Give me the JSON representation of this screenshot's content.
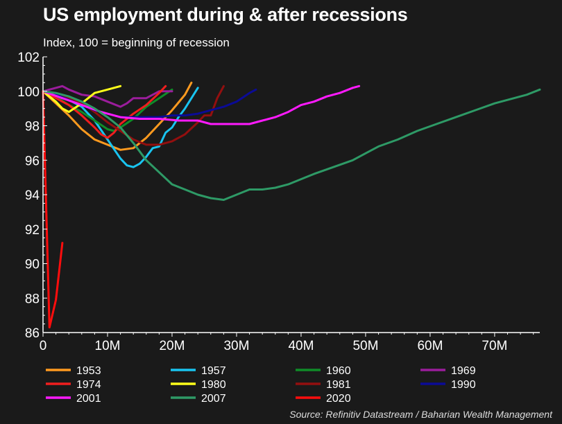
{
  "chart_data": {
    "type": "line",
    "title": "US employment during & after recessions",
    "subtitle": "Index, 100 = beginning of recession",
    "source": "Source: Refinitiv Datastream / Baharian Wealth Management",
    "xlabel": "",
    "ylabel": "",
    "xlim": [
      0,
      77
    ],
    "ylim": [
      86,
      102
    ],
    "x_ticks": [
      0,
      10,
      20,
      30,
      40,
      50,
      60,
      70
    ],
    "x_tick_labels": [
      "0",
      "10M",
      "20M",
      "30M",
      "40M",
      "50M",
      "60M",
      "70M"
    ],
    "y_ticks": [
      86,
      88,
      90,
      92,
      94,
      96,
      98,
      100,
      102
    ],
    "y_tick_labels": [
      "86",
      "88",
      "90",
      "92",
      "94",
      "96",
      "98",
      "100",
      "102"
    ],
    "grid": false,
    "legend_position": "bottom",
    "series": [
      {
        "name": "1953",
        "color": "#ff9a1f",
        "x": [
          0,
          2,
          4,
          6,
          8,
          10,
          12,
          14,
          16,
          18,
          20,
          22,
          23
        ],
        "y": [
          100,
          99.3,
          98.6,
          97.8,
          97.2,
          96.9,
          96.6,
          96.7,
          97.3,
          98.1,
          98.9,
          99.8,
          100.5
        ]
      },
      {
        "name": "1957",
        "color": "#19c4f0",
        "x": [
          0,
          2,
          4,
          6,
          8,
          10,
          12,
          13,
          14,
          15,
          16,
          17,
          18,
          19,
          20,
          21,
          22,
          23,
          24
        ],
        "y": [
          100,
          99.8,
          99.5,
          99.1,
          98.3,
          97.2,
          96.1,
          95.7,
          95.6,
          95.8,
          96.2,
          96.7,
          96.8,
          97.6,
          97.9,
          98.5,
          99,
          99.6,
          100.2
        ]
      },
      {
        "name": "1960",
        "color": "#0f8c28",
        "x": [
          0,
          2,
          4,
          6,
          8,
          10,
          11,
          12,
          14,
          16,
          18,
          20
        ],
        "y": [
          100,
          99.7,
          99.2,
          98.8,
          98.3,
          97.8,
          97.7,
          97.9,
          98.4,
          99.1,
          99.6,
          100.1
        ]
      },
      {
        "name": "1969",
        "color": "#9b1d9c",
        "x": [
          0,
          2,
          3,
          4,
          6,
          8,
          10,
          12,
          13,
          14,
          16,
          18,
          20
        ],
        "y": [
          100,
          100.2,
          100.3,
          100.1,
          99.8,
          99.7,
          99.4,
          99.1,
          99.3,
          99.6,
          99.6,
          100,
          100
        ]
      },
      {
        "name": "1974",
        "color": "#f01e1e",
        "x": [
          0,
          2,
          4,
          6,
          8,
          9,
          10,
          11,
          12,
          14,
          16,
          18,
          19
        ],
        "y": [
          100,
          99.6,
          99.2,
          98.6,
          97.9,
          97.5,
          97.3,
          97.6,
          98.1,
          98.7,
          99.2,
          99.9,
          100.3
        ]
      },
      {
        "name": "1980",
        "color": "#ffff1a",
        "x": [
          0,
          2,
          3,
          4,
          6,
          8,
          10,
          12
        ],
        "y": [
          100,
          99.4,
          99,
          98.8,
          99.3,
          99.9,
          100.1,
          100.3
        ]
      },
      {
        "name": "1981",
        "color": "#930f0f",
        "x": [
          0,
          2,
          4,
          6,
          8,
          10,
          12,
          14,
          16,
          18,
          20,
          22,
          24,
          25,
          26,
          27,
          28
        ],
        "y": [
          100,
          99.8,
          99.6,
          99.3,
          98.8,
          98.2,
          97.7,
          97.2,
          96.9,
          96.9,
          97.1,
          97.5,
          98.2,
          98.6,
          98.6,
          99.6,
          100.3
        ]
      },
      {
        "name": "1990",
        "color": "#0b0b96",
        "x": [
          0,
          2,
          4,
          6,
          8,
          10,
          12,
          14,
          16,
          18,
          20,
          22,
          24,
          26,
          28,
          30,
          32,
          33
        ],
        "y": [
          100,
          99.8,
          99.5,
          99.2,
          98.9,
          98.7,
          98.5,
          98.5,
          98.5,
          98.5,
          98.6,
          98.6,
          98.7,
          98.9,
          99.1,
          99.4,
          99.9,
          100.1
        ]
      },
      {
        "name": "2001",
        "color": "#ff1aff",
        "x": [
          0,
          3,
          6,
          9,
          12,
          15,
          18,
          21,
          24,
          26,
          28,
          30,
          32,
          34,
          36,
          38,
          40,
          42,
          44,
          46,
          48,
          49
        ],
        "y": [
          100,
          99.6,
          99.2,
          98.8,
          98.5,
          98.4,
          98.4,
          98.3,
          98.3,
          98.1,
          98.1,
          98.1,
          98.1,
          98.3,
          98.5,
          98.8,
          99.2,
          99.4,
          99.7,
          99.9,
          100.2,
          100.3
        ]
      },
      {
        "name": "2007",
        "color": "#2e9a66",
        "x": [
          0,
          2,
          4,
          6,
          8,
          10,
          12,
          14,
          16,
          18,
          20,
          22,
          24,
          26,
          28,
          30,
          32,
          34,
          36,
          38,
          40,
          42,
          45,
          48,
          50,
          52,
          55,
          58,
          61,
          64,
          67,
          70,
          73,
          75,
          77
        ],
        "y": [
          100,
          99.9,
          99.7,
          99.4,
          99,
          98.5,
          97.9,
          97,
          96,
          95.3,
          94.6,
          94.3,
          94,
          93.8,
          93.7,
          94,
          94.3,
          94.3,
          94.4,
          94.6,
          94.9,
          95.2,
          95.6,
          96,
          96.4,
          96.8,
          97.2,
          97.7,
          98.1,
          98.5,
          98.9,
          99.3,
          99.6,
          99.8,
          100.1
        ]
      },
      {
        "name": "2020",
        "color": "#ff0d0d",
        "x": [
          0,
          1,
          2,
          3
        ],
        "y": [
          100,
          86.3,
          87.9,
          91.2
        ]
      }
    ]
  }
}
